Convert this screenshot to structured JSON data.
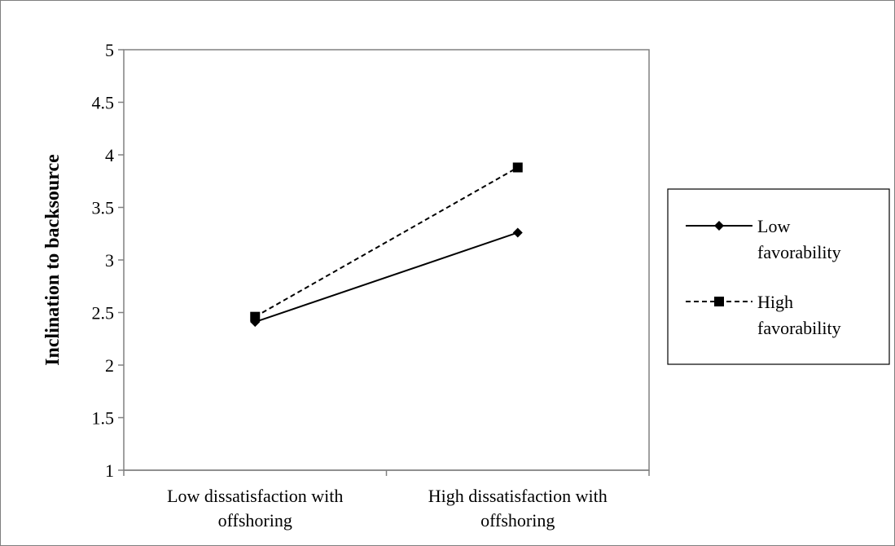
{
  "chart_data": {
    "type": "line",
    "title": "",
    "xlabel": "",
    "ylabel": "Inclination to backsource",
    "categories": [
      [
        "Low dissatisfaction with",
        "offshoring"
      ],
      [
        "High dissatisfaction with",
        "offshoring"
      ]
    ],
    "ylim": [
      1,
      5
    ],
    "yticks": [
      "1",
      "1.5",
      "2",
      "2.5",
      "3",
      "3.5",
      "4",
      "4.5",
      "5"
    ],
    "grid": false,
    "legend_position": "right",
    "series": [
      {
        "name": [
          "Low",
          "favorability"
        ],
        "values": [
          2.41,
          3.26
        ],
        "line_style": "solid",
        "marker": "diamond",
        "color": "#000000"
      },
      {
        "name": [
          "High",
          "favorability"
        ],
        "values": [
          2.46,
          3.88
        ],
        "line_style": "dashed",
        "marker": "square",
        "color": "#000000"
      }
    ]
  }
}
